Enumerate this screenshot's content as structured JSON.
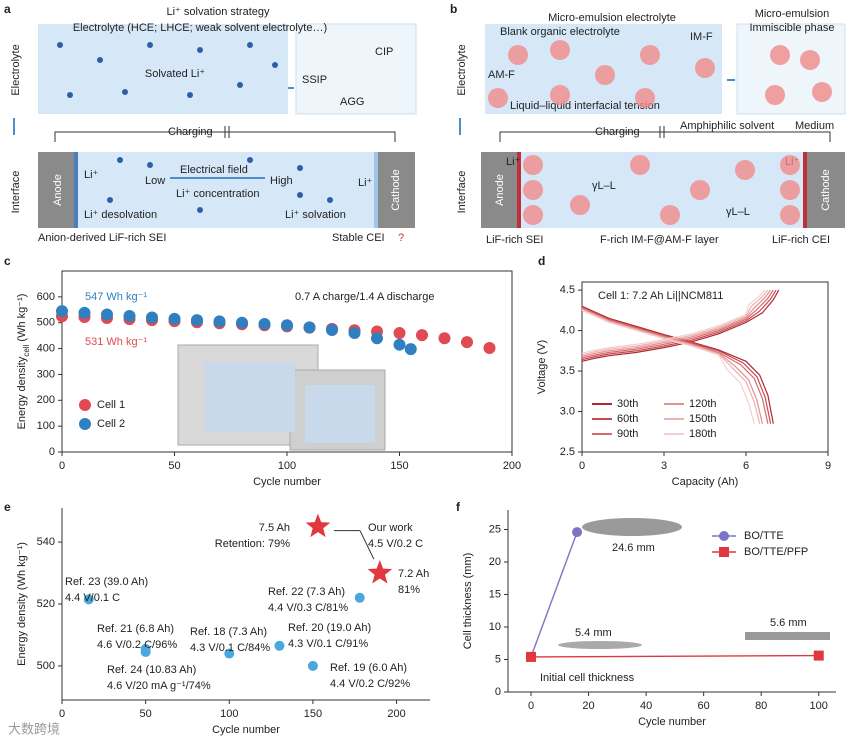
{
  "panel_labels": [
    "a",
    "b",
    "c",
    "d",
    "e",
    "f"
  ],
  "watermark": "大数跨境",
  "diagram_a": {
    "title": "Li⁺ solvation strategy",
    "electrolyte_types": "Electrolyte (HCE; LHCE; weak solvent electrolyte…)",
    "solvated": "Solvated Li⁺",
    "cip": "CIP",
    "ssip": "SSIP",
    "agg": "AGG",
    "row_top": "Electrolyte",
    "row_bottom": "Interface",
    "charging": "Charging",
    "anode": "Anode",
    "cathode": "Cathode",
    "li_left": "Li⁺",
    "li_right": "Li⁺",
    "field": "Electrical field",
    "low": "Low",
    "high": "High",
    "concentration": "Li⁺ concentration",
    "desolvation": "Li⁺ desolvation",
    "solvation": "Li⁺ solvation",
    "sei": "Anion-derived LiF-rich SEI",
    "cei": "Stable CEI",
    "question": "?"
  },
  "diagram_b": {
    "title": "Micro-emulsion electrolyte",
    "blank": "Blank organic electrolyte",
    "im_f": "IM-F",
    "am_f": "AM-F",
    "tension": "Liquid–liquid interfacial tension",
    "micro": "Micro-emulsion",
    "immiscible": "Immiscible phase",
    "amphiphilic": "Amphiphilic solvent",
    "medium": "Medium",
    "row_top": "Electrolyte",
    "row_bottom": "Interface",
    "charging": "Charging",
    "anode": "Anode",
    "cathode": "Cathode",
    "li_left": "Li⁺",
    "li_right": "Li⁺",
    "gamma_1": "γL–L",
    "gamma_2": "γL–L",
    "sei": "LiF-rich SEI",
    "layer": "F-rich IM-F@AM-F layer",
    "cei": "LiF-rich CEI"
  },
  "chart_data": [
    {
      "type": "scatter",
      "x_label": "Cycle number",
      "y_label": [
        "Energy density",
        "cell",
        " (Wh kg⁻¹)"
      ],
      "xlim": [
        0,
        200
      ],
      "xticks": [
        0,
        50,
        100,
        150,
        200
      ],
      "ylim": [
        0,
        700
      ],
      "yticks": [
        0,
        100,
        200,
        300,
        400,
        500,
        600
      ],
      "annotations": [
        "547 Wh kg⁻¹",
        "531 Wh kg⁻¹",
        "0.7 A charge/1.4 A discharge"
      ],
      "legend": "lower left",
      "series": [
        {
          "name": "Cell 1",
          "color": "#e04a52",
          "x": [
            0,
            10,
            20,
            30,
            40,
            50,
            60,
            70,
            80,
            90,
            100,
            110,
            120,
            130,
            140,
            150,
            160,
            170,
            180,
            190
          ],
          "values": [
            525,
            522,
            518,
            514,
            510,
            506,
            502,
            498,
            494,
            490,
            486,
            481,
            476,
            471,
            466,
            460,
            452,
            440,
            425,
            402
          ]
        },
        {
          "name": "Cell 2",
          "color": "#2f7fc1",
          "x": [
            0,
            10,
            20,
            30,
            40,
            50,
            60,
            70,
            80,
            90,
            100,
            110,
            120,
            130,
            140,
            150,
            155
          ],
          "values": [
            545,
            538,
            532,
            526,
            520,
            515,
            510,
            505,
            500,
            495,
            490,
            482,
            472,
            460,
            440,
            415,
            398
          ]
        }
      ]
    },
    {
      "type": "line",
      "x_label": "Capacity (Ah)",
      "y_label": "Voltage (V)",
      "annotations": [
        "Cell 1: 7.2 Ah Li||NCM811"
      ],
      "xlim": [
        0,
        9
      ],
      "xticks": [
        0,
        3,
        6,
        9
      ],
      "ylim": [
        2.5,
        4.6
      ],
      "yticks": [
        2.5,
        {
          "value": 3,
          "label": "3.0"
        },
        3.5,
        {
          "value": 4,
          "label": "4.0"
        },
        4.5
      ],
      "legend": "lower left",
      "series": [
        {
          "name": "30th",
          "color": "#b0282e",
          "x": [
            0,
            1,
            2,
            3,
            4,
            5,
            6,
            6.5,
            6.8,
            7.0,
            null,
            0,
            0.5,
            1,
            2,
            3,
            4,
            5,
            6,
            6.6,
            7.0,
            7.2
          ],
          "values": [
            4.3,
            4.15,
            4.05,
            3.95,
            3.86,
            3.76,
            3.62,
            3.45,
            3.2,
            2.85,
            null,
            3.62,
            3.66,
            3.69,
            3.73,
            3.79,
            3.86,
            3.96,
            4.1,
            4.22,
            4.38,
            4.5
          ]
        },
        {
          "name": "60th",
          "color": "#c54a4f",
          "x": [
            0,
            1,
            2,
            3,
            4,
            5,
            5.9,
            6.4,
            6.7,
            6.9,
            null,
            0,
            0.5,
            1,
            2,
            3,
            4,
            5,
            6,
            6.5,
            6.9,
            7.1
          ],
          "values": [
            4.29,
            4.14,
            4.04,
            3.94,
            3.85,
            3.75,
            3.6,
            3.43,
            3.18,
            2.85,
            null,
            3.64,
            3.68,
            3.71,
            3.75,
            3.81,
            3.88,
            3.98,
            4.12,
            4.24,
            4.39,
            4.5
          ]
        },
        {
          "name": "90th",
          "color": "#d66a6d",
          "x": [
            0,
            1,
            2,
            3,
            4,
            5,
            5.8,
            6.3,
            6.6,
            6.8,
            null,
            0,
            0.5,
            1,
            2,
            3,
            4,
            5,
            6,
            6.4,
            6.8,
            7.0
          ],
          "values": [
            4.28,
            4.13,
            4.03,
            3.93,
            3.84,
            3.73,
            3.58,
            3.41,
            3.16,
            2.85,
            null,
            3.66,
            3.7,
            3.73,
            3.77,
            3.83,
            3.9,
            4.0,
            4.14,
            4.26,
            4.4,
            4.5
          ]
        },
        {
          "name": "120th",
          "color": "#e48f90",
          "x": [
            0,
            1,
            2,
            3,
            4,
            5,
            5.6,
            6.1,
            6.4,
            6.6,
            null,
            0,
            0.5,
            1,
            2,
            3,
            4,
            5,
            6,
            6.3,
            6.7,
            6.9
          ],
          "values": [
            4.27,
            4.12,
            4.02,
            3.92,
            3.83,
            3.72,
            3.56,
            3.39,
            3.14,
            2.85,
            null,
            3.68,
            3.72,
            3.75,
            3.79,
            3.85,
            3.92,
            4.02,
            4.16,
            4.28,
            4.41,
            4.5
          ]
        },
        {
          "name": "150th",
          "color": "#eeb0b0",
          "x": [
            0,
            1,
            2,
            3,
            4,
            5,
            5.5,
            6.0,
            6.3,
            6.5,
            null,
            0,
            0.5,
            1,
            2,
            3,
            4,
            5,
            6,
            6.2,
            6.6,
            6.8
          ],
          "values": [
            4.26,
            4.11,
            4.01,
            3.91,
            3.82,
            3.71,
            3.54,
            3.37,
            3.12,
            2.85,
            null,
            3.7,
            3.74,
            3.77,
            3.81,
            3.87,
            3.94,
            4.04,
            4.18,
            4.3,
            4.42,
            4.5
          ]
        },
        {
          "name": "180th",
          "color": "#f5cfcf",
          "x": [
            0,
            1,
            2,
            3,
            4,
            5,
            5.3,
            5.8,
            6.1,
            6.3,
            null,
            0,
            0.5,
            1,
            2,
            3,
            4,
            5,
            6,
            6.1,
            6.5,
            6.7
          ],
          "values": [
            4.25,
            4.1,
            4.0,
            3.9,
            3.81,
            3.7,
            3.52,
            3.35,
            3.1,
            2.85,
            null,
            3.72,
            3.76,
            3.79,
            3.83,
            3.89,
            3.96,
            4.06,
            4.2,
            4.32,
            4.43,
            4.5
          ]
        }
      ]
    },
    {
      "type": "scatter",
      "x_label": "Cycle number",
      "y_label": "Energy density (Wh kg⁻¹)",
      "xlim": [
        0,
        220
      ],
      "xticks": [
        0,
        50,
        100,
        150,
        200
      ],
      "ylim": [
        489,
        551
      ],
      "yticks": [
        500,
        520,
        540
      ],
      "point_color": "#4aa8de",
      "star_color": "#e0383e",
      "points": [
        {
          "x": 16,
          "y": 521.5,
          "label": [
            "Ref. 23 (39.0 Ah)",
            "4.4 V/0.1 C"
          ]
        },
        {
          "x": 50,
          "y": 505.5,
          "label": [
            "Ref. 21 (6.8 Ah)",
            "4.6 V/0.2 C/96%"
          ]
        },
        {
          "x": 50,
          "y": 504.5,
          "label": [
            "Ref. 24 (10.83 Ah)",
            "4.6 V/20 mA g⁻¹/74%"
          ]
        },
        {
          "x": 100,
          "y": 504,
          "label": [
            "Ref. 18 (7.3 Ah)",
            "4.3 V/0.1 C/84%"
          ]
        },
        {
          "x": 130,
          "y": 506.5,
          "label": [
            "Ref. 20 (19.0 Ah)",
            "4.3 V/0.1 C/91%"
          ]
        },
        {
          "x": 150,
          "y": 500,
          "label": [
            "Ref. 19 (6.0 Ah)",
            "4.4 V/0.2 C/92%"
          ]
        },
        {
          "x": 178,
          "y": 522,
          "label": [
            "Ref. 22 (7.3 Ah)",
            "4.4 V/0.3 C/81%"
          ]
        }
      ],
      "stars": [
        {
          "x": 153,
          "y": 545,
          "label": [
            "7.5 Ah",
            "Retention: 79%"
          ]
        },
        {
          "x": 190,
          "y": 530,
          "label": [
            "7.2 Ah",
            "81%"
          ]
        }
      ],
      "annotations": [
        "Our work",
        "4.5 V/0.2 C"
      ]
    },
    {
      "type": "line",
      "x_label": "Cycle number",
      "y_label": "Cell thickness (mm)",
      "xlim": [
        -8,
        106
      ],
      "xticks": [
        0,
        20,
        40,
        60,
        80,
        100
      ],
      "ylim": [
        0,
        28
      ],
      "yticks": [
        0,
        5,
        10,
        15,
        20,
        25
      ],
      "legend": "upper right",
      "annotations": [
        "24.6 mm",
        "5.4 mm",
        "5.6 mm",
        "Initial cell thickness"
      ],
      "series": [
        {
          "name": "BO/TTE",
          "color": "#7b74c6",
          "marker": "circle",
          "x": [
            0,
            16
          ],
          "values": [
            5.4,
            24.6
          ]
        },
        {
          "name": "BO/TTE/PFP",
          "color": "#e0383e",
          "marker": "square",
          "x": [
            0,
            100
          ],
          "values": [
            5.4,
            5.6
          ]
        }
      ]
    }
  ]
}
